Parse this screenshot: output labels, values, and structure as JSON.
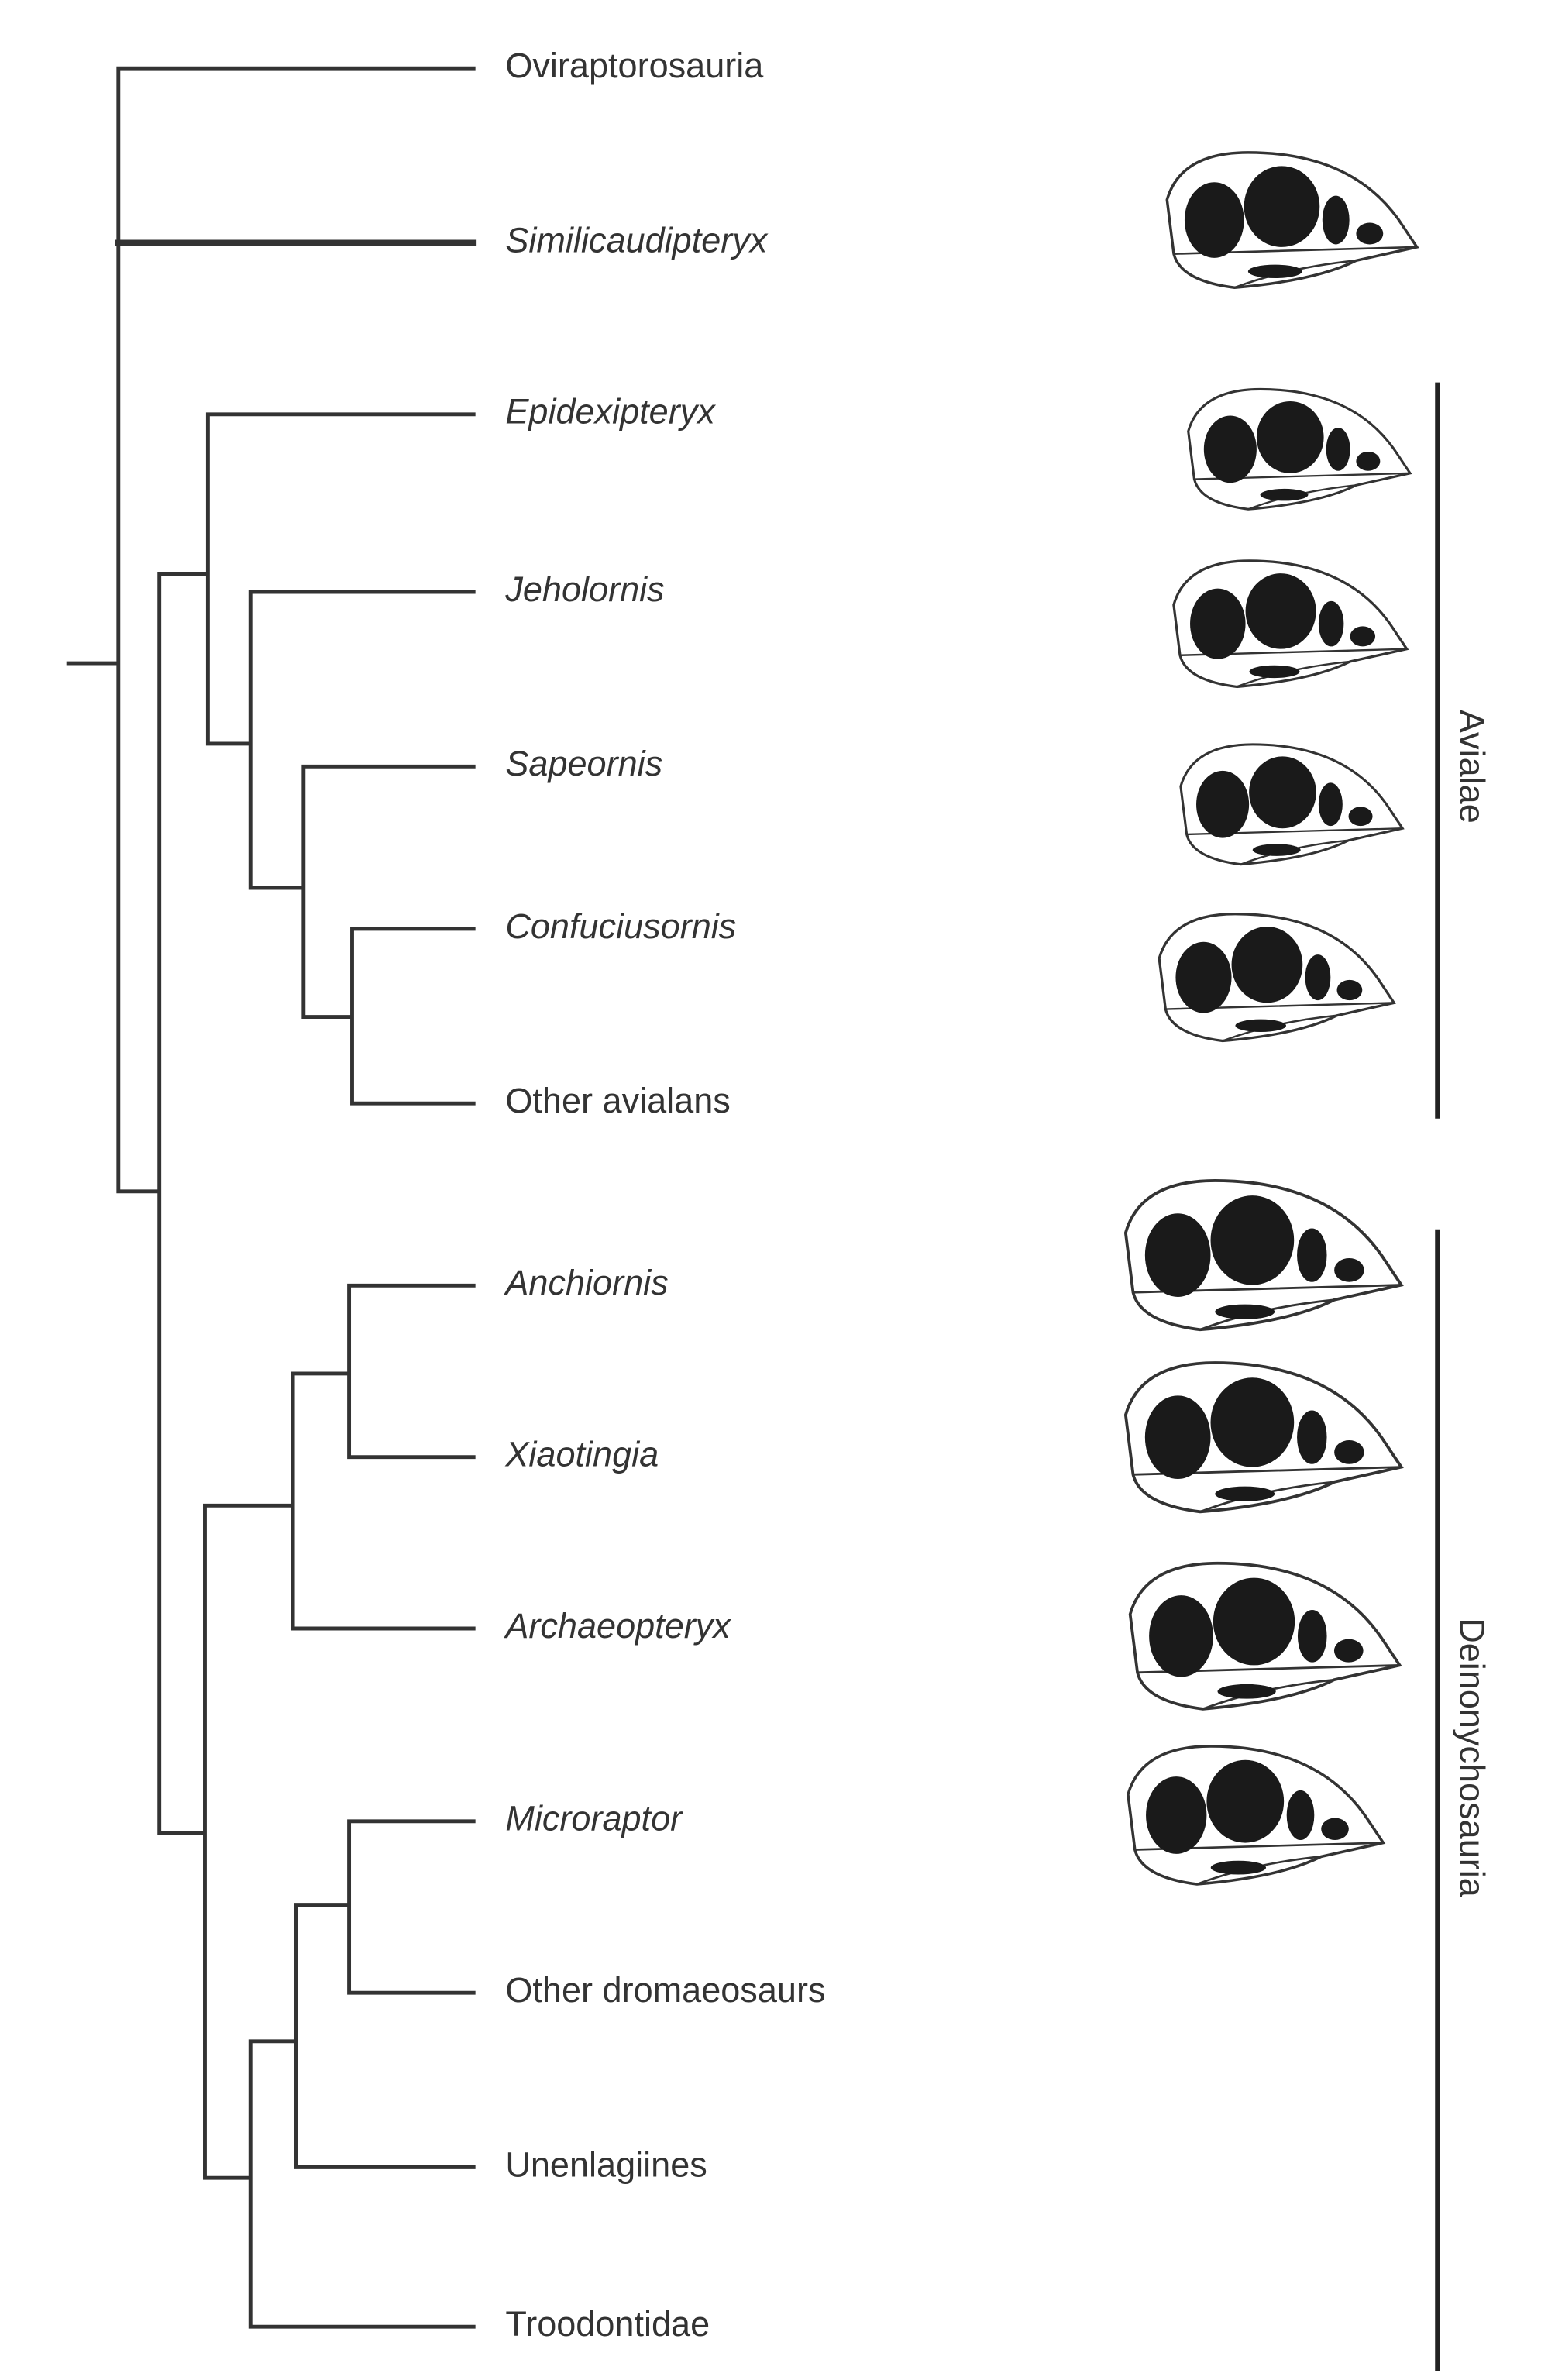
{
  "taxa": [
    {
      "label": "Oviraptorosauria",
      "italic": false
    },
    {
      "label": "Similicaudipteryx",
      "italic": true
    },
    {
      "label": "Epidexipteryx",
      "italic": true
    },
    {
      "label": "Jeholornis",
      "italic": true
    },
    {
      "label": "Sapeornis",
      "italic": true
    },
    {
      "label": "Confuciusornis",
      "italic": true
    },
    {
      "label": "Other avialans",
      "italic": false
    },
    {
      "label": "Anchiornis",
      "italic": true
    },
    {
      "label": "Xiaotingia",
      "italic": true
    },
    {
      "label": "Archaeopteryx",
      "italic": true
    },
    {
      "label": "Microraptor",
      "italic": true
    },
    {
      "label": "Other dromaeosaurs",
      "italic": false
    },
    {
      "label": "Unenlagiines",
      "italic": false
    },
    {
      "label": "Troodontidae",
      "italic": false
    }
  ],
  "clades": [
    {
      "label": "Avialae"
    },
    {
      "label": "Deinonychosauria"
    }
  ]
}
